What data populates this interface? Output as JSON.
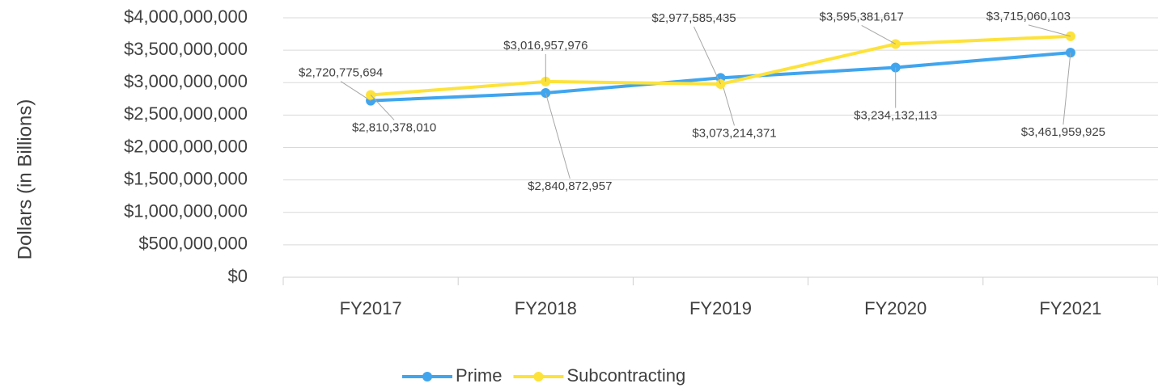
{
  "chart_data": {
    "type": "line",
    "y_label": "Dollars (in Billions)",
    "categories": [
      "FY2017",
      "FY2018",
      "FY2019",
      "FY2020",
      "FY2021"
    ],
    "series": [
      {
        "name": "Prime",
        "color": "#41a5ee",
        "values": [
          2720775694,
          2840872957,
          3073214371,
          3234132113,
          3461959925
        ],
        "value_labels": [
          "$2,720,775,694",
          "$2,840,872,957",
          "$3,073,214,371",
          "$3,234,132,113",
          "$3,461,959,925"
        ]
      },
      {
        "name": "Subcontracting",
        "color": "#fde23a",
        "values": [
          2810378010,
          3016957976,
          2977585435,
          3595381617,
          3715060103
        ],
        "value_labels": [
          "$2,810,378,010",
          "$3,016,957,976",
          "$2,977,585,435",
          "$3,595,381,617",
          "$3,715,060,103"
        ]
      }
    ],
    "ylim": [
      0,
      4000000000
    ],
    "yticks": [
      {
        "value": 0,
        "label": "$0"
      },
      {
        "value": 500000000,
        "label": "$500,000,000"
      },
      {
        "value": 1000000000,
        "label": "$1,000,000,000"
      },
      {
        "value": 1500000000,
        "label": "$1,500,000,000"
      },
      {
        "value": 2000000000,
        "label": "$2,000,000,000"
      },
      {
        "value": 2500000000,
        "label": "$2,500,000,000"
      },
      {
        "value": 3000000000,
        "label": "$3,000,000,000"
      },
      {
        "value": 3500000000,
        "label": "$3,500,000,000"
      },
      {
        "value": 4000000000,
        "label": "$4,000,000,000"
      }
    ],
    "grid": true,
    "legend": "bottom"
  }
}
